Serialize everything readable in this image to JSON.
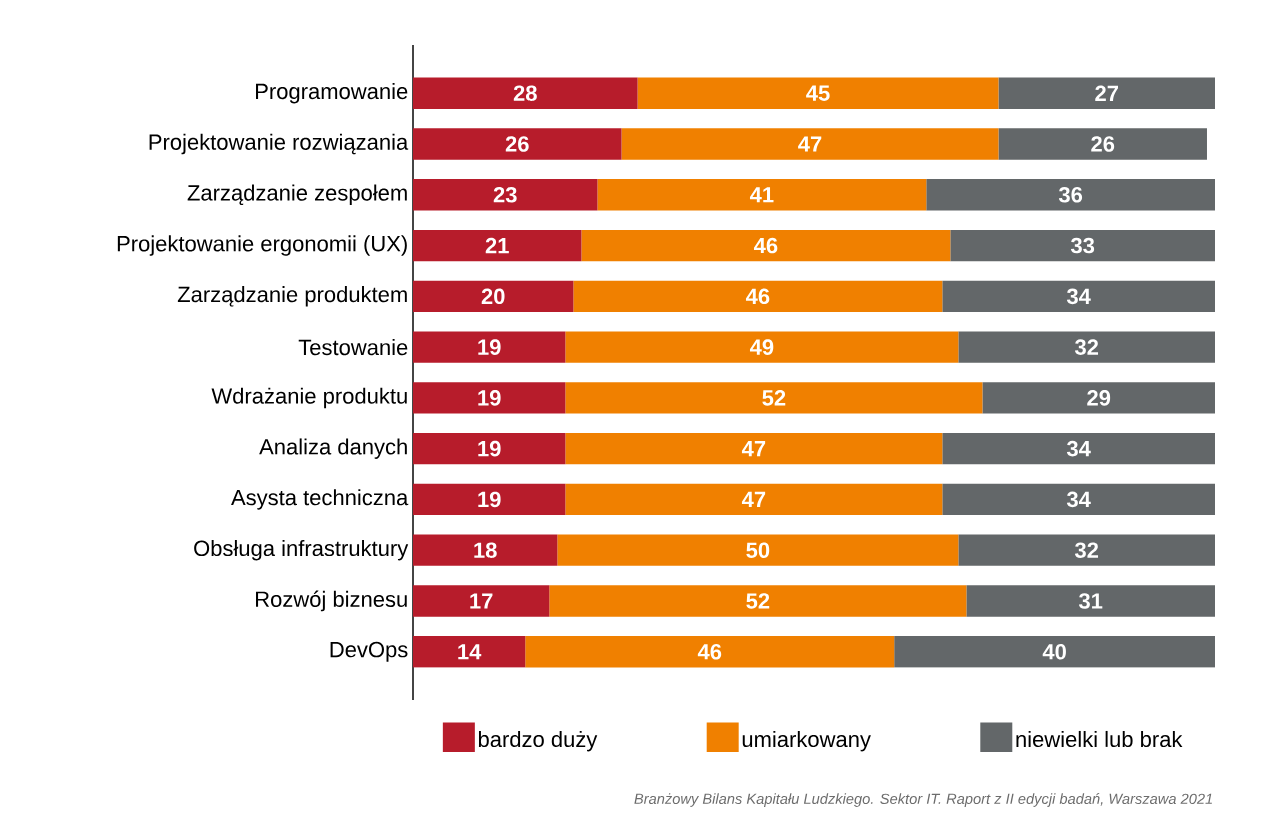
{
  "chart_data": {
    "type": "bar",
    "orientation": "horizontal",
    "stacked": true,
    "data_labels": true,
    "legend": "bottom",
    "categories": [
      "Programowanie",
      "Projektowanie rozwiązania",
      "Zarządzanie zespołem",
      "Projektowanie ergonomii (UX)",
      "Zarządzanie produktem",
      "Testowanie",
      "Wdrażanie produktu",
      "Analiza danych",
      "Asysta techniczna",
      "Obsługa infrastruktury",
      "Rozwój biznesu",
      "DevOps"
    ],
    "series": [
      {
        "name": "bardzo duży",
        "color": "#b71c2b",
        "values": [
          28,
          26,
          23,
          21,
          20,
          19,
          19,
          19,
          19,
          18,
          17,
          14
        ]
      },
      {
        "name": "umiarkowany",
        "color": "#f08000",
        "values": [
          45,
          47,
          41,
          46,
          46,
          49,
          52,
          47,
          47,
          50,
          52,
          46
        ]
      },
      {
        "name": "niewielki lub brak",
        "color": "#636769",
        "values": [
          27,
          26,
          36,
          33,
          34,
          32,
          29,
          34,
          34,
          32,
          31,
          40
        ]
      }
    ],
    "annotations": [
      "Branżowy Bilans Kapitału Ludzkiego. Sektor IT. Raport z II edycji badań, Warszawa 2021"
    ]
  }
}
